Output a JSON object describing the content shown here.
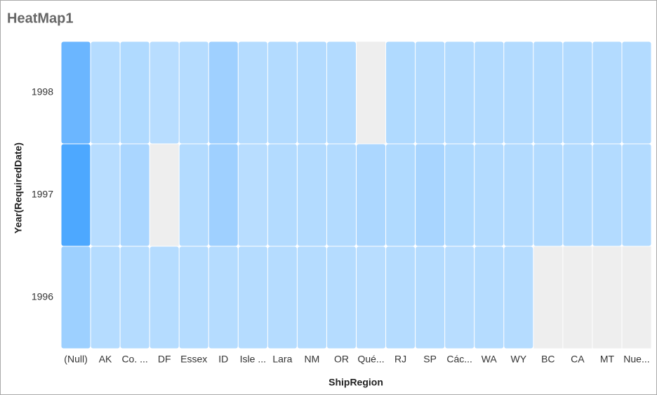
{
  "chart_data": {
    "type": "heatmap",
    "title": "HeatMap1",
    "x_label": "ShipRegion",
    "y_label": "Year(RequiredDate)",
    "categories": [
      "(Null)",
      "AK",
      "Co. ...",
      "DF",
      "Essex",
      "ID",
      "Isle ...",
      "Lara",
      "NM",
      "OR",
      "Qué...",
      "RJ",
      "SP",
      "Các...",
      "WA",
      "WY",
      "BC",
      "CA",
      "MT",
      "Nue..."
    ],
    "rows": [
      "1998",
      "1997",
      "1996"
    ],
    "colors": [
      [
        "#6bb6ff",
        "#b5dcff",
        "#b0daff",
        "#b8ddff",
        "#b5dcff",
        "#9fd0ff",
        "#b5dcff",
        "#b3dbff",
        "#b3dbff",
        "#b3dbff",
        null,
        "#b0daff",
        "#b3dbff",
        "#b3dbff",
        "#b3dbff",
        "#b3dbff",
        "#b3dbff",
        "#b3dbff",
        "#b3dbff",
        "#b3dbff"
      ],
      [
        "#4da8ff",
        "#b8ddff",
        "#aad6ff",
        null,
        "#b3dbff",
        "#9fd0ff",
        "#b8ddff",
        "#b3dbff",
        "#b3dbff",
        "#b3dbff",
        "#acd7ff",
        "#b0daff",
        "#a8d5ff",
        "#b0daff",
        "#b3dbff",
        "#b3dbff",
        "#b3dbff",
        "#b3dbff",
        "#b3dbff",
        "#b3dbff"
      ],
      [
        "#9dd0ff",
        "#b5dcff",
        "#b5dcff",
        "#b5dcff",
        "#b5dcff",
        "#b5dcff",
        "#b5dcff",
        "#b5dcff",
        "#b5dcff",
        "#b5dcff",
        "#b8ddff",
        "#b5dcff",
        "#b5dcff",
        "#b8ddff",
        "#b5dcff",
        "#b5dcff",
        null,
        null,
        null,
        null
      ]
    ]
  }
}
